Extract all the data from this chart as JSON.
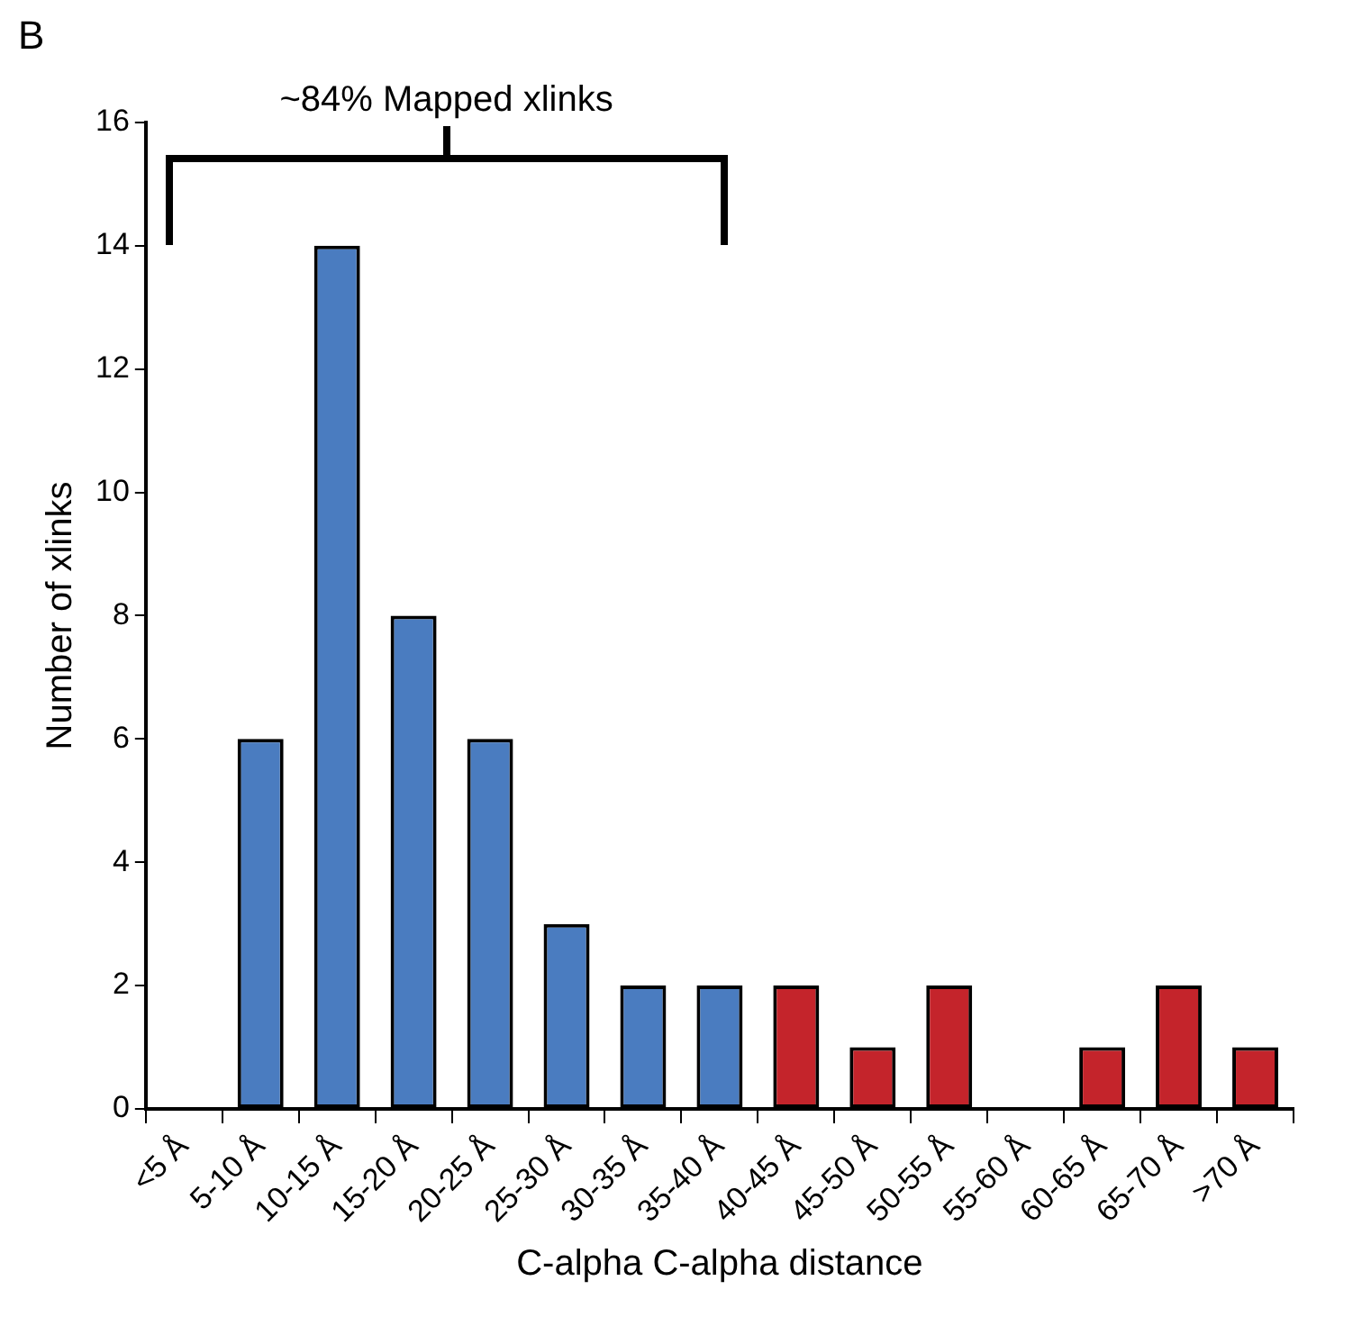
{
  "chart_data": {
    "type": "bar",
    "xlabel": "C-alpha C-alpha distance",
    "ylabel": "Number of xlinks",
    "annotations": [
      "B",
      "~84% Mapped xlinks"
    ],
    "categories": [
      "<5 Å",
      "5-10 Å",
      "10-15 Å",
      "15-20 Å",
      "20-25 Å",
      "25-30 Å",
      "30-35 Å",
      "35-40 Å",
      "40-45 Å",
      "45-50 Å",
      "50-55 Å",
      "55-60 Å",
      "60-65 Å",
      "65-70 Å",
      ">70 Å"
    ],
    "values": [
      0,
      6,
      14,
      8,
      6,
      3,
      2,
      2,
      2,
      1,
      2,
      0,
      1,
      2,
      1
    ],
    "colors": [
      "#4a7cc0",
      "#4a7cc0",
      "#4a7cc0",
      "#4a7cc0",
      "#4a7cc0",
      "#4a7cc0",
      "#4a7cc0",
      "#4a7cc0",
      "#c4242b",
      "#c4242b",
      "#c4242b",
      "#c4242b",
      "#c4242b",
      "#c4242b",
      "#c4242b"
    ],
    "ylim": [
      0,
      16
    ],
    "yticks": [
      0,
      2,
      4,
      6,
      8,
      10,
      12,
      14,
      16
    ],
    "grid": false,
    "legend": false
  }
}
